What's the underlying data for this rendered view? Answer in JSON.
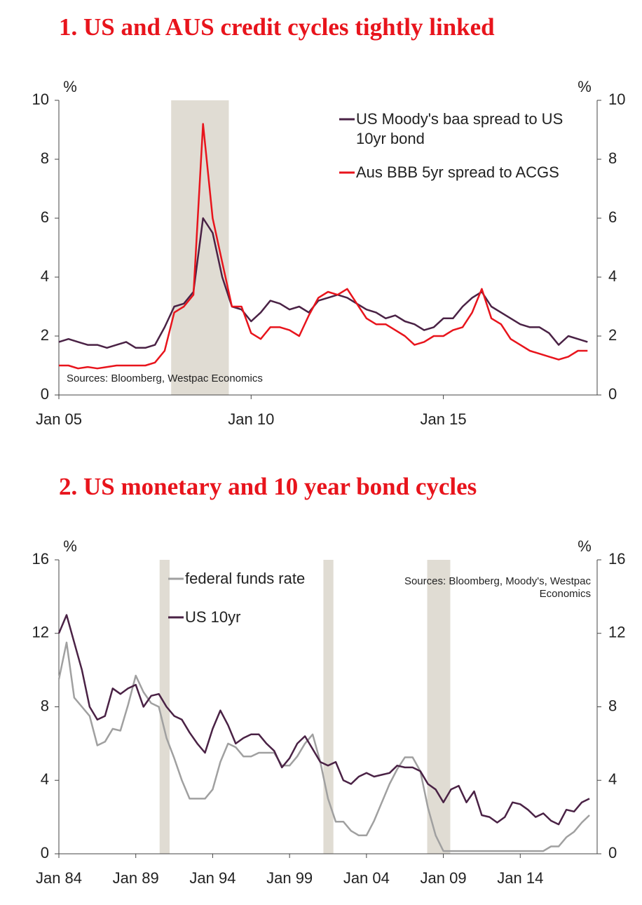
{
  "chart_data": [
    {
      "type": "line",
      "title": "1. US and AUS credit cycles tightly linked",
      "y_label": "%",
      "y2_label": "%",
      "annotation": "Sources: Bloomberg, Westpac Economics",
      "xlim": [
        2005,
        2019
      ],
      "xticks": [
        {
          "value": 2005,
          "label": "Jan 05"
        },
        {
          "value": 2010,
          "label": "Jan 10"
        },
        {
          "value": 2015,
          "label": "Jan 15"
        }
      ],
      "ylim": [
        0,
        10
      ],
      "yticks": [
        0,
        2,
        4,
        6,
        8,
        10
      ],
      "y2lim": [
        0,
        10
      ],
      "y2ticks": [
        0,
        2,
        4,
        6,
        8,
        10
      ],
      "legend": "upper right",
      "shading_color": "#e0dcd3",
      "shading": [
        [
          2007.92,
          2009.42
        ]
      ],
      "x": [
        2005,
        2005.25,
        2005.5,
        2005.75,
        2006,
        2006.25,
        2006.5,
        2006.75,
        2007,
        2007.25,
        2007.5,
        2007.75,
        2008,
        2008.25,
        2008.5,
        2008.75,
        2009,
        2009.25,
        2009.5,
        2009.75,
        2010,
        2010.25,
        2010.5,
        2010.75,
        2011,
        2011.25,
        2011.5,
        2011.75,
        2012,
        2012.25,
        2012.5,
        2012.75,
        2013,
        2013.25,
        2013.5,
        2013.75,
        2014,
        2014.25,
        2014.5,
        2014.75,
        2015,
        2015.25,
        2015.5,
        2015.75,
        2016,
        2016.25,
        2016.5,
        2016.75,
        2017,
        2017.25,
        2017.5,
        2017.75,
        2018,
        2018.25,
        2018.5,
        2018.75
      ],
      "series": [
        {
          "name": "US Moody's baa spread to US 10yr bond",
          "color": "#4a2245",
          "values": [
            1.8,
            1.9,
            1.8,
            1.7,
            1.7,
            1.6,
            1.7,
            1.8,
            1.6,
            1.6,
            1.7,
            2.3,
            3.0,
            3.1,
            3.5,
            6.0,
            5.5,
            4.0,
            3.0,
            2.9,
            2.5,
            2.8,
            3.2,
            3.1,
            2.9,
            3.0,
            2.8,
            3.2,
            3.3,
            3.4,
            3.3,
            3.1,
            2.9,
            2.8,
            2.6,
            2.7,
            2.5,
            2.4,
            2.2,
            2.3,
            2.6,
            2.6,
            3.0,
            3.3,
            3.5,
            3.0,
            2.8,
            2.6,
            2.4,
            2.3,
            2.3,
            2.1,
            1.7,
            2.0,
            1.9,
            1.8
          ]
        },
        {
          "name": "Aus BBB 5yr spread to ACGS",
          "color": "#e8141c",
          "values": [
            1.0,
            1.0,
            0.9,
            0.95,
            0.9,
            0.95,
            1.0,
            1.0,
            1.0,
            1.0,
            1.1,
            1.5,
            2.8,
            3.0,
            3.4,
            9.2,
            6.0,
            4.5,
            3.0,
            3.0,
            2.1,
            1.9,
            2.3,
            2.3,
            2.2,
            2.0,
            2.7,
            3.3,
            3.5,
            3.4,
            3.6,
            3.1,
            2.6,
            2.4,
            2.4,
            2.2,
            2.0,
            1.7,
            1.8,
            2.0,
            2.0,
            2.2,
            2.3,
            2.8,
            3.6,
            2.6,
            2.4,
            1.9,
            1.7,
            1.5,
            1.4,
            1.3,
            1.2,
            1.3,
            1.5,
            1.5
          ]
        }
      ]
    },
    {
      "type": "line",
      "title": "2. US monetary and 10 year bond cycles",
      "y_label": "%",
      "y2_label": "%",
      "annotation": "Sources: Bloomberg, Moody's, Westpac Economics",
      "xlim": [
        1984,
        2019
      ],
      "xticks": [
        {
          "value": 1984,
          "label": "Jan 84"
        },
        {
          "value": 1989,
          "label": "Jan 89"
        },
        {
          "value": 1994,
          "label": "Jan 94"
        },
        {
          "value": 1999,
          "label": "Jan 99"
        },
        {
          "value": 2004,
          "label": "Jan 04"
        },
        {
          "value": 2009,
          "label": "Jan 09"
        },
        {
          "value": 2014,
          "label": "Jan 14"
        }
      ],
      "ylim": [
        0,
        16
      ],
      "yticks": [
        0,
        4,
        8,
        12,
        16
      ],
      "y2lim": [
        0,
        16
      ],
      "y2ticks": [
        0,
        4,
        8,
        12,
        16
      ],
      "legend": "upper left",
      "shading_color": "#e0dcd3",
      "shading": [
        [
          1990.55,
          1991.2
        ],
        [
          2001.2,
          2001.85
        ],
        [
          2007.95,
          2009.45
        ]
      ],
      "x": [
        1984,
        1984.5,
        1985,
        1985.5,
        1986,
        1986.5,
        1987,
        1987.5,
        1988,
        1988.5,
        1989,
        1989.5,
        1990,
        1990.5,
        1991,
        1991.5,
        1992,
        1992.5,
        1993,
        1993.5,
        1994,
        1994.5,
        1995,
        1995.5,
        1996,
        1996.5,
        1997,
        1997.5,
        1998,
        1998.5,
        1999,
        1999.5,
        2000,
        2000.5,
        2001,
        2001.5,
        2002,
        2002.5,
        2003,
        2003.5,
        2004,
        2004.5,
        2005,
        2005.5,
        2006,
        2006.5,
        2007,
        2007.5,
        2008,
        2008.5,
        2009,
        2009.5,
        2010,
        2010.5,
        2011,
        2011.5,
        2012,
        2012.5,
        2013,
        2013.5,
        2014,
        2014.5,
        2015,
        2015.5,
        2016,
        2016.5,
        2017,
        2017.5,
        2018,
        2018.5
      ],
      "series": [
        {
          "name": "federal funds rate",
          "color": "#a0a0a0",
          "values": [
            9.5,
            11.5,
            8.5,
            8.0,
            7.5,
            5.9,
            6.1,
            6.8,
            6.7,
            8.1,
            9.7,
            8.8,
            8.2,
            8.0,
            6.3,
            5.2,
            4.0,
            3.0,
            3.0,
            3.0,
            3.5,
            5.0,
            6.0,
            5.8,
            5.3,
            5.3,
            5.5,
            5.5,
            5.5,
            4.8,
            4.8,
            5.3,
            6.0,
            6.5,
            5.0,
            3.0,
            1.75,
            1.75,
            1.25,
            1.0,
            1.0,
            1.8,
            2.8,
            3.8,
            4.6,
            5.25,
            5.25,
            4.5,
            2.5,
            1.0,
            0.15,
            0.15,
            0.15,
            0.15,
            0.15,
            0.15,
            0.15,
            0.15,
            0.15,
            0.15,
            0.15,
            0.15,
            0.15,
            0.15,
            0.4,
            0.4,
            0.9,
            1.2,
            1.7,
            2.1
          ]
        },
        {
          "name": "US 10yr",
          "color": "#4a2245",
          "values": [
            12.0,
            13.0,
            11.5,
            10.0,
            8.0,
            7.3,
            7.5,
            9.0,
            8.7,
            9.0,
            9.2,
            8.0,
            8.6,
            8.7,
            8.0,
            7.5,
            7.3,
            6.6,
            6.0,
            5.5,
            6.8,
            7.8,
            7.0,
            6.0,
            6.3,
            6.5,
            6.5,
            6.0,
            5.6,
            4.7,
            5.2,
            6.0,
            6.4,
            5.7,
            5.0,
            4.8,
            5.0,
            4.0,
            3.8,
            4.2,
            4.4,
            4.2,
            4.3,
            4.4,
            4.8,
            4.7,
            4.7,
            4.5,
            3.8,
            3.5,
            2.8,
            3.5,
            3.7,
            2.8,
            3.4,
            2.1,
            2.0,
            1.7,
            2.0,
            2.8,
            2.7,
            2.4,
            2.0,
            2.2,
            1.8,
            1.6,
            2.4,
            2.3,
            2.8,
            3.0
          ]
        }
      ]
    }
  ]
}
